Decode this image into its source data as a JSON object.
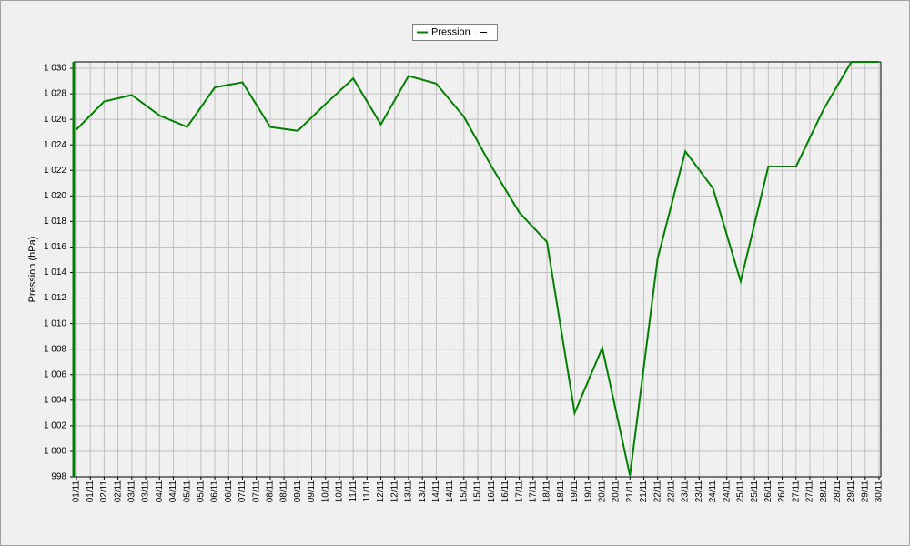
{
  "chart_data": {
    "type": "line",
    "y_label": "Pression (hPa)",
    "x": [
      "01/11",
      "02/11",
      "03/11",
      "04/11",
      "05/11",
      "06/11",
      "07/11",
      "08/11",
      "09/11",
      "10/11",
      "11/11",
      "12/11",
      "13/11",
      "14/11",
      "15/11",
      "16/11",
      "17/11",
      "18/11",
      "19/11",
      "20/11",
      "21/11",
      "22/11",
      "23/11",
      "24/11",
      "25/11",
      "26/11",
      "27/11",
      "28/11",
      "29/11",
      "30/11"
    ],
    "xticks": [
      "01/11",
      "01/11",
      "02/11",
      "02/11",
      "03/11",
      "03/11",
      "04/11",
      "04/11",
      "05/11",
      "05/11",
      "06/11",
      "06/11",
      "07/11",
      "07/11",
      "08/11",
      "08/11",
      "09/11",
      "09/11",
      "10/11",
      "10/11",
      "11/11",
      "11/11",
      "12/11",
      "12/11",
      "13/11",
      "13/11",
      "14/11",
      "14/11",
      "15/11",
      "15/11",
      "16/11",
      "16/11",
      "17/11",
      "17/11",
      "18/11",
      "18/11",
      "19/11",
      "19/11",
      "20/11",
      "20/11",
      "21/11",
      "21/11",
      "22/11",
      "22/11",
      "23/11",
      "23/11",
      "24/11",
      "24/11",
      "25/11",
      "25/11",
      "26/11",
      "26/11",
      "27/11",
      "27/11",
      "28/11",
      "28/11",
      "29/11",
      "29/11",
      "30/11"
    ],
    "series": [
      {
        "name": "Pression",
        "color": "#008000",
        "values": [
          1025.2,
          1027.4,
          1027.9,
          1026.3,
          1025.4,
          1028.5,
          1028.9,
          1025.4,
          1025.1,
          1027.2,
          1029.2,
          1025.6,
          1029.4,
          1028.8,
          1026.2,
          1022.3,
          1018.7,
          1016.4,
          1003.0,
          1008.1,
          998.1,
          1015.1,
          1023.5,
          1020.6,
          1013.3,
          1022.3,
          1022.3,
          1026.8,
          1030.5,
          1030.5
        ]
      }
    ],
    "ylim": [
      998,
      1030.5
    ],
    "yticks": [
      998,
      {
        "value": 1000,
        "label": "1 000"
      },
      {
        "value": 1002,
        "label": "1 002"
      },
      {
        "value": 1004,
        "label": "1 004"
      },
      {
        "value": 1006,
        "label": "1 006"
      },
      {
        "value": 1008,
        "label": "1 008"
      },
      {
        "value": 1010,
        "label": "1 010"
      },
      {
        "value": 1012,
        "label": "1 012"
      },
      {
        "value": 1014,
        "label": "1 014"
      },
      {
        "value": 1016,
        "label": "1 016"
      },
      {
        "value": 1018,
        "label": "1 018"
      },
      {
        "value": 1020,
        "label": "1 020"
      },
      {
        "value": 1022,
        "label": "1 022"
      },
      {
        "value": 1024,
        "label": "1 024"
      },
      {
        "value": 1026,
        "label": "1 026"
      },
      {
        "value": 1028,
        "label": "1 028"
      },
      {
        "value": 1030,
        "label": "1 030"
      }
    ],
    "grid": true
  }
}
